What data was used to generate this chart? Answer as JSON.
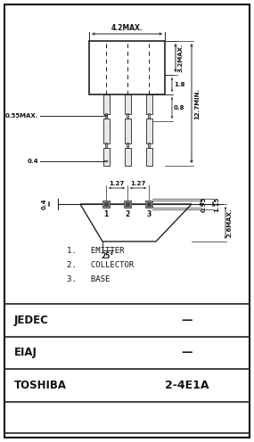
{
  "bg_color": "#ffffff",
  "border_color": "#111111",
  "table_rows": [
    {
      "label": "JEDEC",
      "value": "—"
    },
    {
      "label": "EIAJ",
      "value": "—"
    },
    {
      "label": "TOSHIBA",
      "value": "2-4E1A"
    }
  ],
  "pin_labels": [
    "1.   EMITTER",
    "2.   COLLECTOR",
    "3.   BASE"
  ],
  "dim_labels": {
    "width_top": "4.2MAX.",
    "height_right_top": "3.2MAX.",
    "height_right_main": "12.7MIN.",
    "dim_08": "0.8",
    "dim_18": "1.8",
    "dim_055": "0.55MAX.",
    "dim_04_top": "0.4",
    "dim_127a": "1.27",
    "dim_127b": "1.27",
    "dim_095": "0.95",
    "dim_115": "1.15",
    "dim_04_bot": "0.4",
    "dim_26": "2.6MAX.",
    "angle": "25°"
  }
}
